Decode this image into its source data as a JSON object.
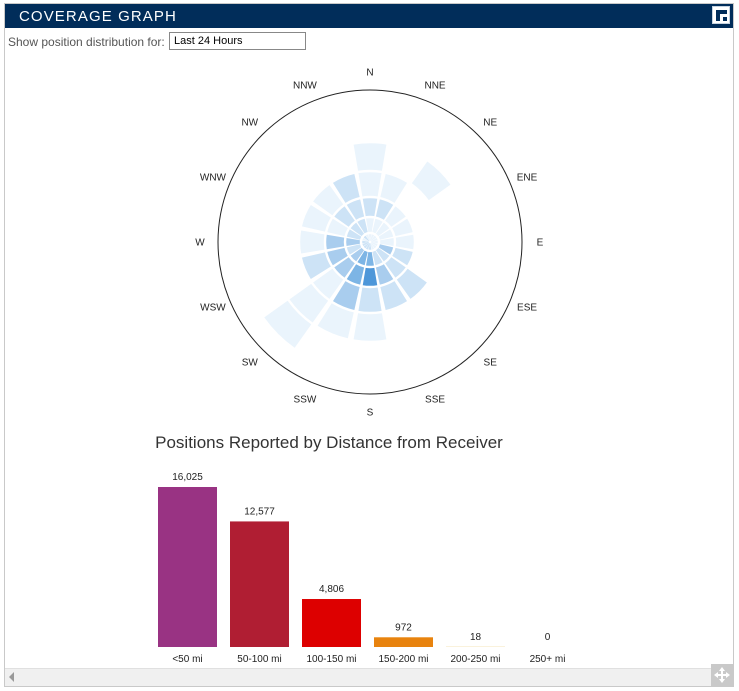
{
  "panel": {
    "title": "COVERAGE GRAPH",
    "filter_label": "Show position distribution for:",
    "range_value": "Last 24 Hours"
  },
  "colors": {
    "titlebar": "#012d5a",
    "wedge_levels": [
      "#eaf4fc",
      "#cde3f6",
      "#a9cdee",
      "#7db5e5",
      "#4e97d9",
      "#1f78d1"
    ]
  },
  "chart_data": [
    {
      "type": "polar-area",
      "title": "",
      "directions": [
        "N",
        "NNE",
        "NE",
        "ENE",
        "E",
        "ESE",
        "SE",
        "SSE",
        "S",
        "SSW",
        "SW",
        "WSW",
        "W",
        "WNW",
        "NW",
        "NNW"
      ],
      "distance_bands": [
        "<50 mi",
        "50-100 mi",
        "100-150 mi",
        "150-200 mi",
        "200-250 mi",
        "250+ mi"
      ],
      "rings": [
        [
          1,
          1,
          1,
          1,
          1,
          1,
          1,
          1,
          2,
          2,
          2,
          2,
          2,
          1,
          2,
          1
        ],
        [
          1,
          1,
          1,
          1,
          1,
          3,
          2,
          2,
          4,
          4,
          3,
          2,
          3,
          2,
          2,
          2
        ],
        [
          2,
          2,
          1,
          1,
          1,
          2,
          2,
          3,
          5,
          4,
          3,
          3,
          3,
          1,
          2,
          2
        ],
        [
          1,
          1,
          0,
          0,
          0,
          0,
          2,
          2,
          2,
          3,
          1,
          2,
          1,
          1,
          1,
          2
        ],
        [
          1,
          0,
          1,
          0,
          0,
          0,
          0,
          0,
          1,
          1,
          1,
          0,
          0,
          0,
          0,
          0
        ],
        [
          0,
          0,
          0,
          0,
          0,
          0,
          0,
          0,
          0,
          0,
          1,
          0,
          0,
          0,
          0,
          0
        ]
      ]
    },
    {
      "type": "bar",
      "title": "Positions Reported by Distance from Receiver",
      "categories": [
        "<50 mi",
        "50-100 mi",
        "100-150 mi",
        "150-200 mi",
        "200-250 mi",
        "250+ mi"
      ],
      "values": [
        16025,
        12577,
        4806,
        972,
        18,
        0
      ],
      "labels": [
        "16,025",
        "12,577",
        "4,806",
        "972",
        "18",
        "0"
      ],
      "colors": [
        "#993383",
        "#b01e33",
        "#dd0000",
        "#e8830e",
        "#e2b93a",
        "#e0d040"
      ],
      "ylim": [
        0,
        16025
      ]
    }
  ]
}
